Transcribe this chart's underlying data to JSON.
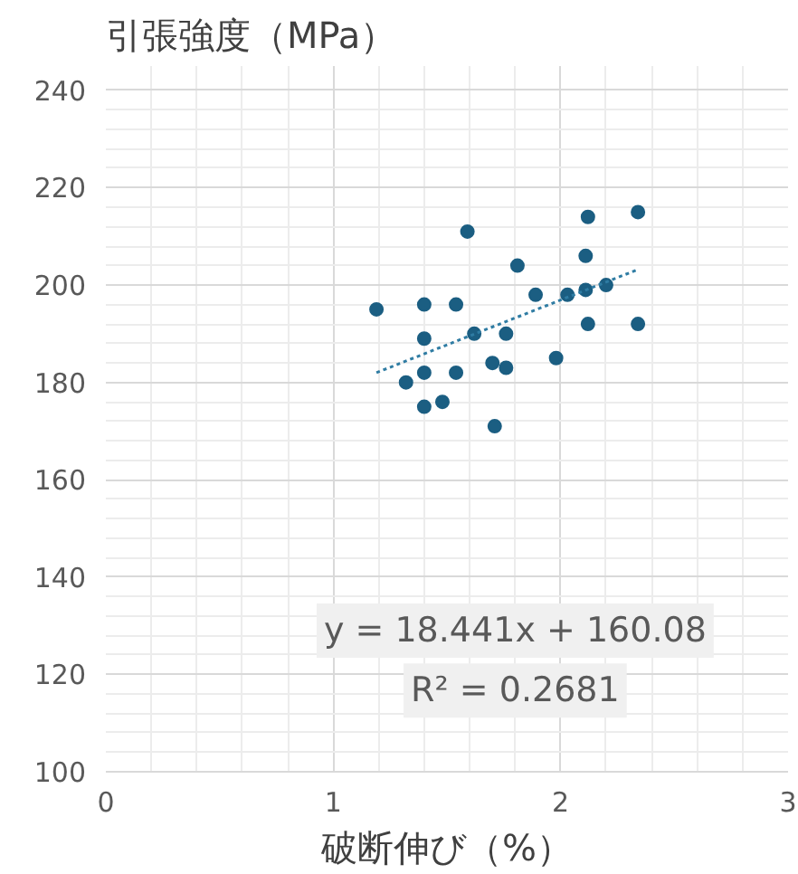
{
  "chart_data": {
    "type": "scatter",
    "title": "引張強度（MPa）",
    "xlabel": "破断伸び（%）",
    "xlim": [
      0,
      3
    ],
    "xticks": [
      0,
      1,
      2,
      3
    ],
    "ylim": [
      100,
      245
    ],
    "yticks": [
      100,
      120,
      140,
      160,
      180,
      200,
      220,
      240
    ],
    "grid": true,
    "annotations": [
      "y = 18.441x + 160.08",
      "R² = 0.2681"
    ],
    "series": [
      {
        "marker": "circle",
        "color": "#1b5e82",
        "x": [
          1.19,
          1.4,
          1.54,
          1.4,
          1.4,
          1.32,
          1.4,
          1.48,
          1.54,
          1.59,
          1.62,
          1.7,
          1.71,
          1.76,
          1.76,
          1.81,
          1.89,
          1.98,
          2.03,
          2.11,
          2.11,
          2.12,
          2.12,
          2.2,
          2.34,
          2.34
        ],
        "values": [
          195,
          196,
          196,
          189,
          182,
          180,
          175,
          176,
          182,
          211,
          190,
          184,
          171,
          190,
          183,
          204,
          198,
          185,
          198,
          199,
          206,
          214,
          192,
          200,
          215,
          192
        ]
      },
      {
        "type": "line",
        "marker": "none",
        "color": "#2f7ca3",
        "line_style": "dotted",
        "x": [
          1.19,
          2.34
        ],
        "values": [
          182.0,
          203.2
        ]
      }
    ]
  }
}
